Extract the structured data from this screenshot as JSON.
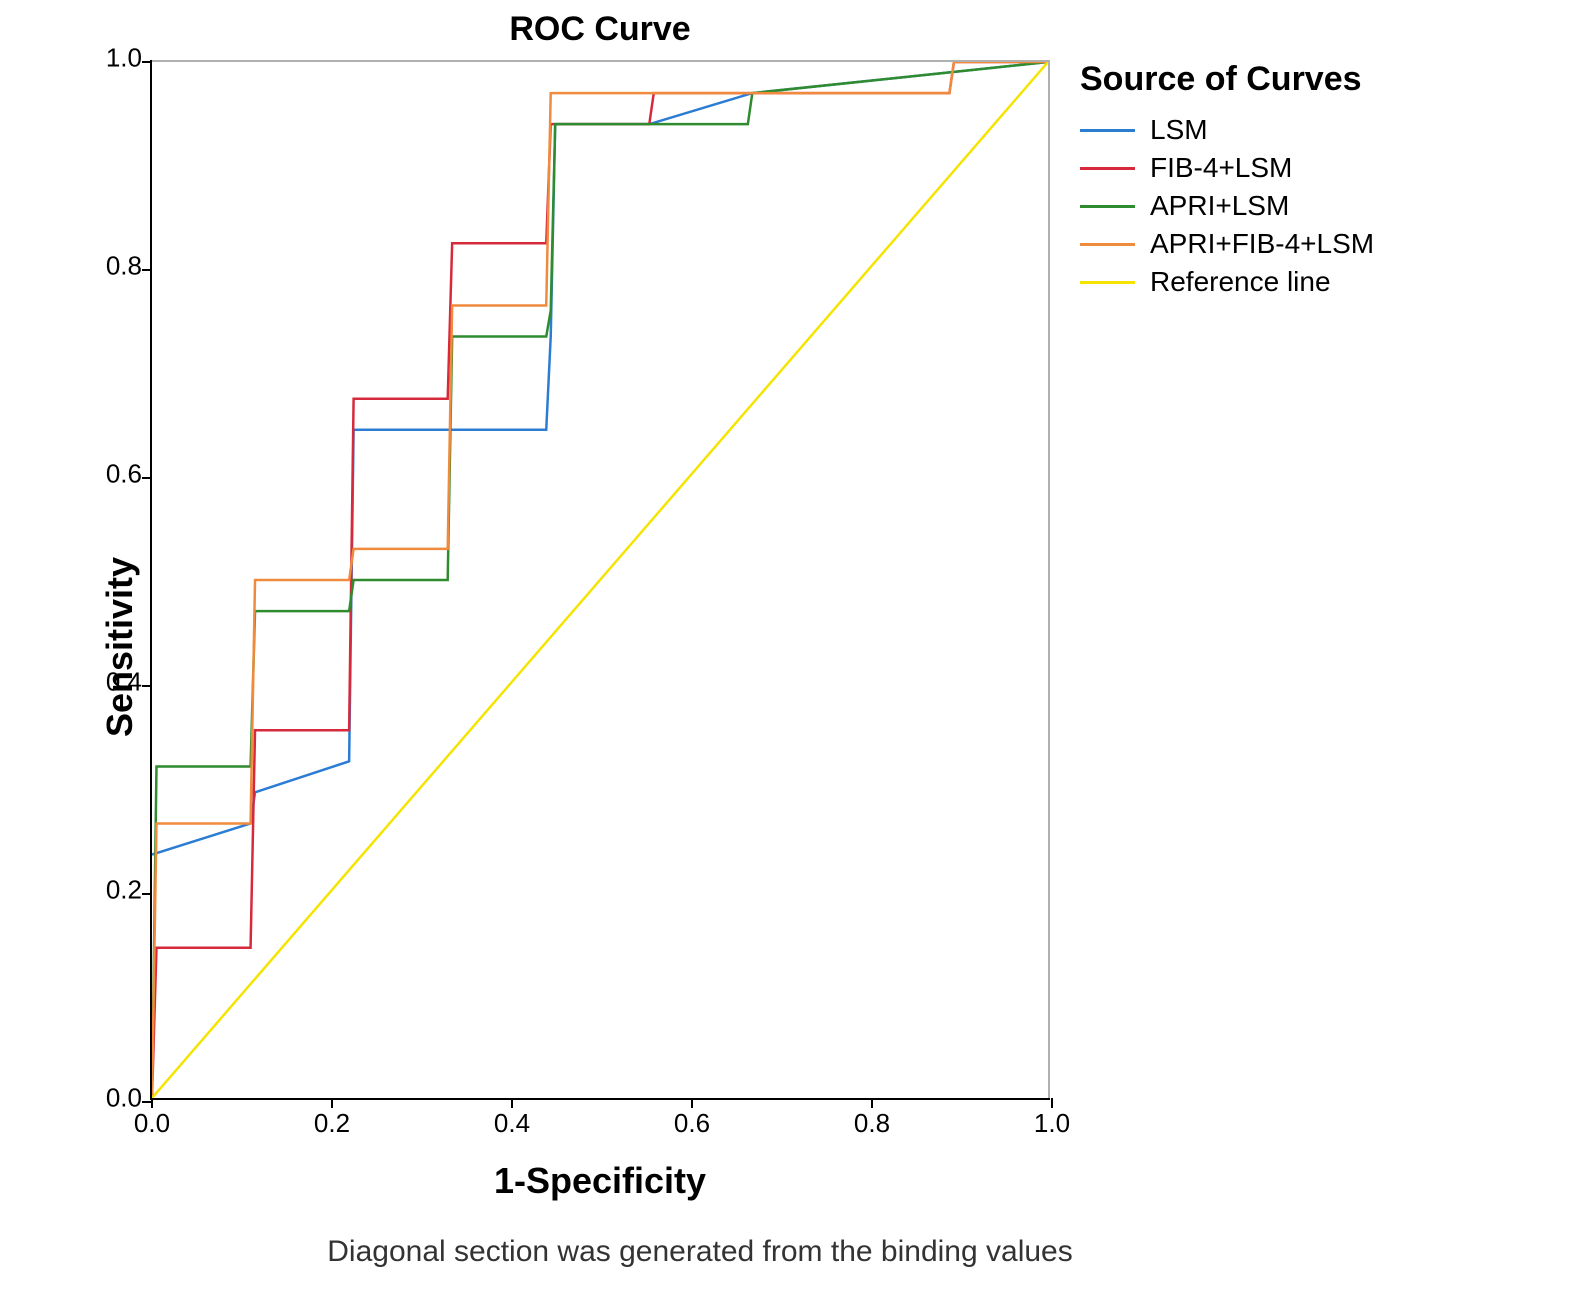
{
  "chart": {
    "type": "line",
    "title": "ROC Curve",
    "title_fontsize": 34,
    "title_fontweight": "bold",
    "xlabel": "1-Specificity",
    "ylabel": "Sensitivity",
    "label_fontsize": 36,
    "label_fontweight": "bold",
    "caption": "Diagonal section was generated from the binding values",
    "caption_fontsize": 30,
    "background_color": "#ffffff",
    "border_color": "#b0b0b0",
    "axis_color": "#000000",
    "xlim": [
      0.0,
      1.0
    ],
    "ylim": [
      0.0,
      1.0
    ],
    "xtick_step": 0.2,
    "ytick_step": 0.2,
    "xticks": [
      "0.0",
      "0.2",
      "0.4",
      "0.6",
      "0.8",
      "1.0"
    ],
    "yticks": [
      "0.0",
      "0.2",
      "0.4",
      "0.6",
      "0.8",
      "1.0"
    ],
    "tick_fontsize": 26,
    "line_width": 2.5,
    "legend": {
      "title": "Source of Curves",
      "title_fontsize": 34,
      "position": "right",
      "items": [
        {
          "label": "LSM",
          "color": "#2b7cd3"
        },
        {
          "label": "FIB-4+LSM",
          "color": "#d62a3c"
        },
        {
          "label": "APRI+LSM",
          "color": "#2e8b2e"
        },
        {
          "label": "APRI+FIB-4+LSM",
          "color": "#f08a3c"
        },
        {
          "label": "Reference line",
          "color": "#f5e400"
        }
      ]
    },
    "series": [
      {
        "name": "LSM",
        "color": "#2b7cd3",
        "points": [
          [
            0.0,
            0.235
          ],
          [
            0.11,
            0.265
          ],
          [
            0.115,
            0.295
          ],
          [
            0.22,
            0.325
          ],
          [
            0.225,
            0.645
          ],
          [
            0.44,
            0.645
          ],
          [
            0.445,
            0.735
          ],
          [
            0.45,
            0.94
          ],
          [
            0.555,
            0.94
          ],
          [
            0.67,
            0.97
          ],
          [
            1.0,
            1.0
          ]
        ]
      },
      {
        "name": "FIB-4+LSM",
        "color": "#d62a3c",
        "points": [
          [
            0.0,
            0.0
          ],
          [
            0.005,
            0.145
          ],
          [
            0.11,
            0.145
          ],
          [
            0.115,
            0.355
          ],
          [
            0.22,
            0.355
          ],
          [
            0.225,
            0.675
          ],
          [
            0.33,
            0.675
          ],
          [
            0.335,
            0.825
          ],
          [
            0.44,
            0.825
          ],
          [
            0.445,
            0.94
          ],
          [
            0.555,
            0.94
          ],
          [
            0.56,
            0.97
          ],
          [
            0.89,
            0.97
          ],
          [
            0.895,
            1.0
          ],
          [
            1.0,
            1.0
          ]
        ]
      },
      {
        "name": "APRI+LSM",
        "color": "#2e8b2e",
        "points": [
          [
            0.0,
            0.0
          ],
          [
            0.005,
            0.32
          ],
          [
            0.11,
            0.32
          ],
          [
            0.115,
            0.47
          ],
          [
            0.22,
            0.47
          ],
          [
            0.225,
            0.5
          ],
          [
            0.33,
            0.5
          ],
          [
            0.335,
            0.735
          ],
          [
            0.44,
            0.735
          ],
          [
            0.445,
            0.76
          ],
          [
            0.45,
            0.94
          ],
          [
            0.665,
            0.94
          ],
          [
            0.67,
            0.97
          ],
          [
            1.0,
            1.0
          ]
        ]
      },
      {
        "name": "APRI+FIB-4+LSM",
        "color": "#f08a3c",
        "points": [
          [
            0.0,
            0.0
          ],
          [
            0.005,
            0.265
          ],
          [
            0.11,
            0.265
          ],
          [
            0.115,
            0.5
          ],
          [
            0.22,
            0.5
          ],
          [
            0.225,
            0.53
          ],
          [
            0.33,
            0.53
          ],
          [
            0.335,
            0.765
          ],
          [
            0.44,
            0.765
          ],
          [
            0.445,
            0.97
          ],
          [
            0.89,
            0.97
          ],
          [
            0.895,
            1.0
          ],
          [
            1.0,
            1.0
          ]
        ]
      },
      {
        "name": "Reference line",
        "color": "#f5e400",
        "points": [
          [
            0.0,
            0.0
          ],
          [
            1.0,
            1.0
          ]
        ]
      }
    ]
  }
}
